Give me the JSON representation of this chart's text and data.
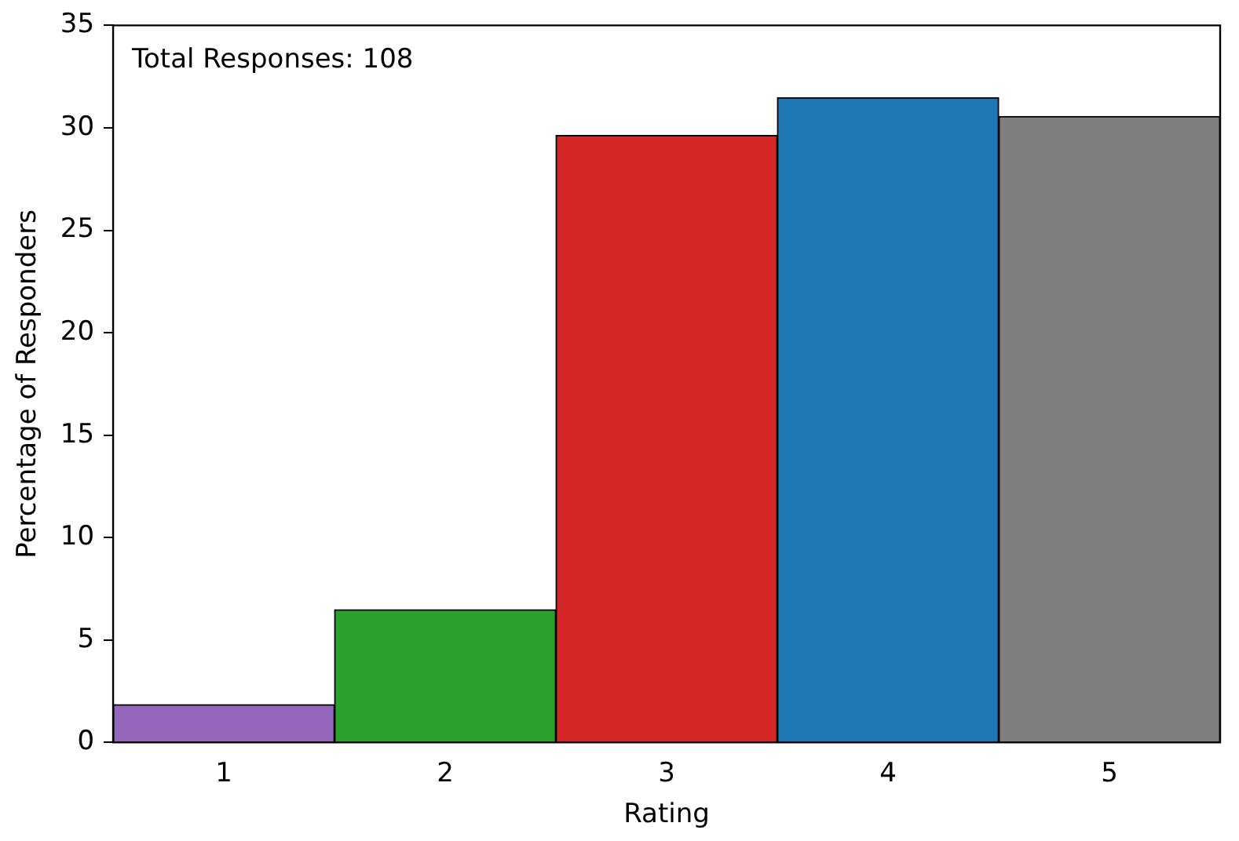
{
  "chart_data": {
    "type": "bar",
    "xlabel": "Rating",
    "ylabel": "Percentage of Responders",
    "categories": [
      "1",
      "2",
      "3",
      "4",
      "5"
    ],
    "values": [
      1.85,
      6.48,
      29.63,
      31.48,
      30.56
    ],
    "colors": [
      "#9467bd",
      "#2ca02c",
      "#d62728",
      "#1f77b4",
      "#7f7f7f"
    ],
    "ylim": [
      0,
      35
    ],
    "yticks": [
      0,
      5,
      10,
      15,
      20,
      25,
      30,
      35
    ],
    "grid": false,
    "legend": false,
    "annotations": [
      "Total Responses: 108"
    ]
  }
}
